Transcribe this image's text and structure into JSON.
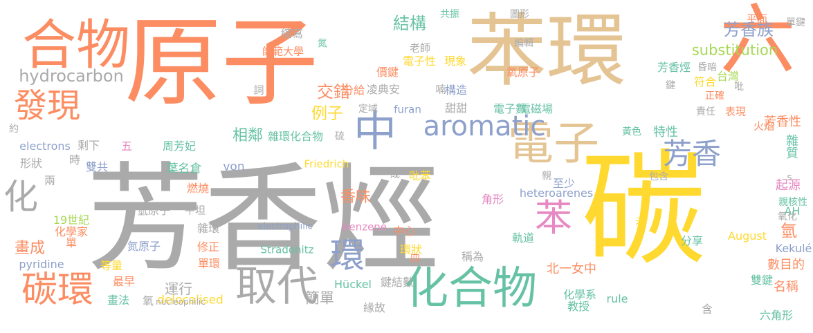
{
  "palette": {
    "gray": "#aaaaaa",
    "orange": "#fc8d62",
    "tan": "#e5c494",
    "yellow": "#ffd92f",
    "blue": "#8da0cb",
    "green": "#66c2a5",
    "pink": "#e78ac3",
    "lime": "#a6d854"
  },
  "words": [
    {
      "text": "芳香烴",
      "color": "gray"
    },
    {
      "text": "原子",
      "color": "orange"
    },
    {
      "text": "苯環",
      "color": "tan"
    },
    {
      "text": "六",
      "color": "orange"
    },
    {
      "text": "碳",
      "color": "yellow"
    },
    {
      "text": "合物",
      "color": "orange"
    },
    {
      "text": "取代",
      "color": "gray"
    },
    {
      "text": "化合物",
      "color": "green"
    },
    {
      "text": "電子",
      "color": "tan"
    },
    {
      "text": "中",
      "color": "blue"
    },
    {
      "text": "aromatic",
      "color": "blue"
    },
    {
      "text": "芳香",
      "color": "blue"
    },
    {
      "text": "苯",
      "color": "pink"
    },
    {
      "text": "碳環",
      "color": "orange"
    },
    {
      "text": "發現",
      "color": "orange"
    },
    {
      "text": "化",
      "color": "gray"
    },
    {
      "text": "環",
      "color": "blue"
    },
    {
      "text": "hydrocarbon",
      "color": "gray"
    },
    {
      "text": "substitution",
      "color": "lime"
    },
    {
      "text": "芳香族",
      "color": "blue"
    },
    {
      "text": "結構",
      "color": "green"
    },
    {
      "text": "交錯",
      "color": "orange"
    },
    {
      "text": "例子",
      "color": "yellow"
    },
    {
      "text": "畫成",
      "color": "orange"
    },
    {
      "text": "香味",
      "color": "orange"
    },
    {
      "text": "相鄰",
      "color": "green"
    },
    {
      "text": "運行",
      "color": "gray"
    },
    {
      "text": "簡單",
      "color": "gray"
    },
    {
      "text": "氫",
      "color": "orange"
    },
    {
      "text": "雜質",
      "color": "green"
    },
    {
      "text": "芳香性",
      "color": "orange"
    },
    {
      "text": "特性",
      "color": "green"
    },
    {
      "text": "起源",
      "color": "pink"
    },
    {
      "text": "數目的",
      "color": "orange"
    },
    {
      "text": "名稱",
      "color": "orange"
    },
    {
      "text": "雙鍵",
      "color": "green"
    },
    {
      "text": "六角形",
      "color": "green"
    },
    {
      "text": "教授",
      "color": "green"
    },
    {
      "text": "化學系",
      "color": "green"
    },
    {
      "text": "北一女中",
      "color": "orange"
    },
    {
      "text": "軌道",
      "color": "green"
    },
    {
      "text": "稱為",
      "color": "gray"
    },
    {
      "text": "中心",
      "color": "orange"
    },
    {
      "text": "分享",
      "color": "green"
    },
    {
      "text": "August",
      "color": "yellow"
    },
    {
      "text": "Kekulé",
      "color": "blue"
    },
    {
      "text": "AH",
      "color": "green"
    },
    {
      "text": "親核性",
      "color": "green"
    },
    {
      "text": "氧化",
      "color": "gray"
    },
    {
      "text": "含",
      "color": "gray"
    },
    {
      "text": "rule",
      "color": "green"
    },
    {
      "text": "緣故",
      "color": "gray"
    },
    {
      "text": "Hückel",
      "color": "green"
    },
    {
      "text": "delocalised",
      "color": "yellow"
    },
    {
      "text": "nucleophilic",
      "color": "gray"
    },
    {
      "text": "畫法",
      "color": "green"
    },
    {
      "text": "氧",
      "color": "gray"
    },
    {
      "text": "最早",
      "color": "orange"
    },
    {
      "text": "等量",
      "color": "yellow"
    },
    {
      "text": "pyridine",
      "color": "blue"
    },
    {
      "text": "單",
      "color": "orange"
    },
    {
      "text": "化學家",
      "color": "orange"
    },
    {
      "text": "19世紀",
      "color": "lime"
    },
    {
      "text": "氫原子",
      "color": "gray"
    },
    {
      "text": "氮原子",
      "color": "blue"
    },
    {
      "text": "修正",
      "color": "orange"
    },
    {
      "text": "單環",
      "color": "orange"
    },
    {
      "text": "雜環",
      "color": "gray"
    },
    {
      "text": "平坦",
      "color": "gray"
    },
    {
      "text": "燃燒",
      "color": "orange"
    },
    {
      "text": "葉名倉",
      "color": "green"
    },
    {
      "text": "雙共",
      "color": "blue"
    },
    {
      "text": "兩",
      "color": "gray"
    },
    {
      "text": "形狀",
      "color": "gray"
    },
    {
      "text": "時",
      "color": "gray"
    },
    {
      "text": "electrons",
      "color": "blue"
    },
    {
      "text": "剩下",
      "color": "gray"
    },
    {
      "text": "五",
      "color": "pink"
    },
    {
      "text": "約",
      "color": "gray"
    },
    {
      "text": "周芳妃",
      "color": "green"
    },
    {
      "text": "雜環化合物",
      "color": "green"
    },
    {
      "text": "硫",
      "color": "gray"
    },
    {
      "text": "von",
      "color": "blue"
    },
    {
      "text": "Friedrich",
      "color": "yellow"
    },
    {
      "text": "electrophilic",
      "color": "blue"
    },
    {
      "text": "Stradonitz",
      "color": "green"
    },
    {
      "text": "benzene",
      "color": "pink"
    },
    {
      "text": "heteroarenes",
      "color": "blue"
    },
    {
      "text": "角形",
      "color": "pink"
    },
    {
      "text": "鍵結數",
      "color": "gray"
    },
    {
      "text": "環狀",
      "color": "yellow"
    },
    {
      "text": "四",
      "color": "orange"
    },
    {
      "text": "成",
      "color": "gray"
    },
    {
      "text": "吡苯",
      "color": "yellow"
    },
    {
      "text": "至少",
      "color": "blue"
    },
    {
      "text": "親",
      "color": "gray"
    },
    {
      "text": "未",
      "color": "yellow"
    },
    {
      "text": "包含",
      "color": "gray"
    },
    {
      "text": "黃色",
      "color": "green"
    },
    {
      "text": "電子數",
      "color": "green"
    },
    {
      "text": "電磁場",
      "color": "green"
    },
    {
      "text": "甜甜",
      "color": "gray"
    },
    {
      "text": "furan",
      "color": "blue"
    },
    {
      "text": "凌典安",
      "color": "gray"
    },
    {
      "text": "定域",
      "color": "gray"
    },
    {
      "text": "分給",
      "color": "orange"
    },
    {
      "text": "構造",
      "color": "blue"
    },
    {
      "text": "喃",
      "color": "gray"
    },
    {
      "text": "氧原子",
      "color": "orange"
    },
    {
      "text": "電子性",
      "color": "yellow"
    },
    {
      "text": "價鍵",
      "color": "orange"
    },
    {
      "text": "現象",
      "color": "yellow"
    },
    {
      "text": "老師",
      "color": "gray"
    },
    {
      "text": "詞",
      "color": "gray"
    },
    {
      "text": "師範大學",
      "color": "orange"
    },
    {
      "text": "縮寫",
      "color": "gray"
    },
    {
      "text": "氮",
      "color": "green"
    },
    {
      "text": "共振",
      "color": "green"
    },
    {
      "text": "圖形",
      "color": "gray"
    },
    {
      "text": "編輯",
      "color": "gray"
    },
    {
      "text": "平面",
      "color": "orange"
    },
    {
      "text": "單鍵",
      "color": "gray"
    },
    {
      "text": "芳香烴",
      "color": "green"
    },
    {
      "text": "昏暗",
      "color": "gray"
    },
    {
      "text": "台灣",
      "color": "lime"
    },
    {
      "text": "符合",
      "color": "yellow"
    },
    {
      "text": "正確",
      "color": "orange"
    },
    {
      "text": "吡",
      "color": "gray"
    },
    {
      "text": "鍵",
      "color": "gray"
    },
    {
      "text": "火焰",
      "color": "orange"
    },
    {
      "text": "責任",
      "color": "gray"
    },
    {
      "text": "表現",
      "color": "orange"
    },
    {
      "text": "s",
      "color": "gray"
    }
  ]
}
